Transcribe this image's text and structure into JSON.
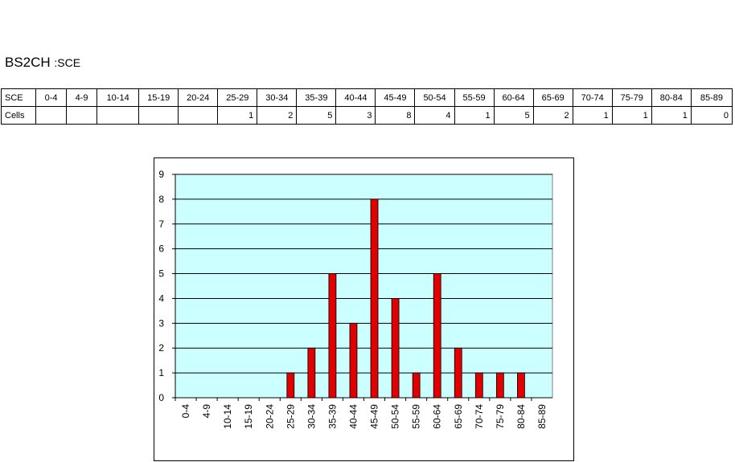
{
  "header": {
    "title_main": "BS2CH",
    "title_sub": ":SCE"
  },
  "table": {
    "row_labels": [
      "SCE",
      "Cells"
    ],
    "columns": [
      "0-4",
      "4-9",
      "10-14",
      "15-19",
      "20-24",
      "25-29",
      "30-34",
      "35-39",
      "40-44",
      "45-49",
      "50-54",
      "55-59",
      "60-64",
      "65-69",
      "70-74",
      "75-79",
      "80-84",
      "85-89"
    ],
    "cells": [
      "",
      "",
      "",
      "",
      "",
      "1",
      "2",
      "5",
      "3",
      "8",
      "4",
      "1",
      "5",
      "2",
      "1",
      "1",
      "1",
      "0"
    ]
  },
  "colors": {
    "plot_bg": "#ccffff",
    "bar": "#e00000",
    "grid": "#000000"
  },
  "chart_data": {
    "type": "bar",
    "categories": [
      "0-4",
      "4-9",
      "10-14",
      "15-19",
      "20-24",
      "25-29",
      "30-34",
      "35-39",
      "40-44",
      "45-49",
      "50-54",
      "55-59",
      "60-64",
      "65-69",
      "70-74",
      "75-79",
      "80-84",
      "85-89"
    ],
    "values": [
      0,
      0,
      0,
      0,
      0,
      1,
      2,
      5,
      3,
      8,
      4,
      1,
      5,
      2,
      1,
      1,
      1,
      0
    ],
    "ylim": [
      0,
      9
    ],
    "yticks": [
      0,
      1,
      2,
      3,
      4,
      5,
      6,
      7,
      8,
      9
    ],
    "grid": true,
    "legend": "none"
  }
}
